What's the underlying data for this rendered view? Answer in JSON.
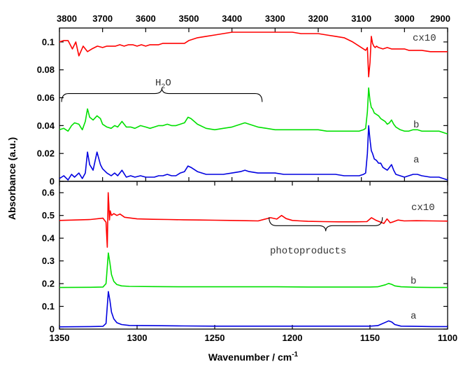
{
  "chart_data": [
    {
      "type": "line",
      "panel": "top",
      "xlabel": "",
      "ylabel": "Absorbance (a.u.)",
      "xlim": [
        3800,
        2900
      ],
      "ylim": [
        0,
        0.11
      ],
      "x_ticks": [
        3800,
        3700,
        3600,
        3500,
        3400,
        3300,
        3200,
        3100,
        3000,
        2900
      ],
      "y_ticks": [
        0,
        0.02,
        0.04,
        0.06,
        0.08,
        0.1
      ],
      "grid": false,
      "series": [
        {
          "name": "cx10",
          "color": "#ff0000",
          "x": [
            3800,
            3790,
            3780,
            3770,
            3762,
            3755,
            3745,
            3735,
            3725,
            3712,
            3700,
            3690,
            3680,
            3670,
            3660,
            3650,
            3640,
            3630,
            3620,
            3610,
            3600,
            3590,
            3580,
            3570,
            3560,
            3550,
            3540,
            3530,
            3520,
            3510,
            3500,
            3490,
            3480,
            3460,
            3440,
            3420,
            3400,
            3380,
            3360,
            3340,
            3320,
            3300,
            3280,
            3260,
            3240,
            3220,
            3200,
            3180,
            3160,
            3140,
            3120,
            3105,
            3095,
            3090,
            3086,
            3083,
            3080,
            3077,
            3074,
            3071,
            3068,
            3065,
            3060,
            3050,
            3040,
            3030,
            3020,
            3010,
            3000,
            2990,
            2980,
            2960,
            2940,
            2920,
            2900
          ],
          "y": [
            0.1,
            0.101,
            0.101,
            0.095,
            0.1,
            0.09,
            0.097,
            0.093,
            0.095,
            0.097,
            0.096,
            0.097,
            0.097,
            0.097,
            0.098,
            0.097,
            0.098,
            0.098,
            0.097,
            0.098,
            0.097,
            0.098,
            0.098,
            0.098,
            0.099,
            0.099,
            0.099,
            0.099,
            0.099,
            0.099,
            0.101,
            0.102,
            0.103,
            0.104,
            0.105,
            0.106,
            0.107,
            0.107,
            0.107,
            0.107,
            0.107,
            0.107,
            0.107,
            0.107,
            0.106,
            0.106,
            0.106,
            0.105,
            0.104,
            0.103,
            0.1,
            0.097,
            0.095,
            0.094,
            0.096,
            0.075,
            0.085,
            0.104,
            0.099,
            0.097,
            0.096,
            0.097,
            0.096,
            0.095,
            0.096,
            0.095,
            0.095,
            0.095,
            0.095,
            0.094,
            0.094,
            0.094,
            0.093,
            0.093,
            0.093
          ]
        },
        {
          "name": "b",
          "color": "#00e000",
          "x": [
            3800,
            3790,
            3780,
            3772,
            3765,
            3755,
            3747,
            3740,
            3735,
            3730,
            3722,
            3713,
            3705,
            3700,
            3690,
            3680,
            3672,
            3665,
            3655,
            3645,
            3635,
            3625,
            3612,
            3600,
            3590,
            3580,
            3570,
            3560,
            3550,
            3540,
            3530,
            3520,
            3510,
            3502,
            3495,
            3480,
            3460,
            3440,
            3420,
            3400,
            3380,
            3370,
            3360,
            3340,
            3320,
            3300,
            3280,
            3260,
            3240,
            3220,
            3200,
            3180,
            3160,
            3140,
            3120,
            3105,
            3095,
            3090,
            3086,
            3083,
            3080,
            3077,
            3074,
            3070,
            3065,
            3060,
            3055,
            3050,
            3045,
            3040,
            3035,
            3030,
            3025,
            3020,
            3010,
            3000,
            2990,
            2980,
            2970,
            2960,
            2940,
            2920,
            2900
          ],
          "y": [
            0.037,
            0.038,
            0.036,
            0.04,
            0.042,
            0.041,
            0.037,
            0.043,
            0.052,
            0.046,
            0.044,
            0.047,
            0.045,
            0.041,
            0.039,
            0.038,
            0.04,
            0.039,
            0.043,
            0.039,
            0.039,
            0.038,
            0.04,
            0.039,
            0.038,
            0.039,
            0.04,
            0.04,
            0.041,
            0.04,
            0.04,
            0.041,
            0.042,
            0.046,
            0.045,
            0.041,
            0.038,
            0.037,
            0.038,
            0.039,
            0.041,
            0.042,
            0.041,
            0.039,
            0.038,
            0.037,
            0.037,
            0.037,
            0.037,
            0.037,
            0.037,
            0.036,
            0.036,
            0.036,
            0.036,
            0.036,
            0.037,
            0.038,
            0.05,
            0.067,
            0.058,
            0.053,
            0.052,
            0.049,
            0.048,
            0.047,
            0.045,
            0.044,
            0.043,
            0.041,
            0.042,
            0.044,
            0.041,
            0.039,
            0.037,
            0.036,
            0.036,
            0.037,
            0.037,
            0.036,
            0.036,
            0.036,
            0.034
          ]
        },
        {
          "name": "a",
          "color": "#0000e0",
          "x": [
            3800,
            3790,
            3780,
            3772,
            3765,
            3755,
            3747,
            3740,
            3735,
            3730,
            3722,
            3713,
            3705,
            3700,
            3690,
            3680,
            3672,
            3665,
            3655,
            3645,
            3635,
            3625,
            3612,
            3600,
            3590,
            3580,
            3570,
            3560,
            3550,
            3540,
            3530,
            3520,
            3510,
            3502,
            3495,
            3480,
            3460,
            3440,
            3420,
            3400,
            3380,
            3370,
            3360,
            3340,
            3320,
            3300,
            3280,
            3260,
            3240,
            3220,
            3200,
            3180,
            3160,
            3140,
            3120,
            3105,
            3095,
            3090,
            3086,
            3083,
            3080,
            3077,
            3074,
            3070,
            3065,
            3060,
            3055,
            3050,
            3045,
            3040,
            3035,
            3030,
            3025,
            3020,
            3010,
            3000,
            2990,
            2980,
            2970,
            2960,
            2940,
            2920,
            2900
          ],
          "y": [
            0.002,
            0.004,
            0.001,
            0.005,
            0.003,
            0.006,
            0.002,
            0.006,
            0.021,
            0.012,
            0.008,
            0.021,
            0.012,
            0.009,
            0.006,
            0.004,
            0.006,
            0.004,
            0.008,
            0.003,
            0.004,
            0.003,
            0.004,
            0.003,
            0.003,
            0.003,
            0.004,
            0.004,
            0.005,
            0.004,
            0.004,
            0.006,
            0.007,
            0.011,
            0.01,
            0.007,
            0.005,
            0.005,
            0.005,
            0.006,
            0.007,
            0.008,
            0.007,
            0.006,
            0.006,
            0.006,
            0.005,
            0.005,
            0.005,
            0.005,
            0.005,
            0.005,
            0.005,
            0.004,
            0.004,
            0.004,
            0.005,
            0.006,
            0.02,
            0.04,
            0.03,
            0.022,
            0.02,
            0.016,
            0.015,
            0.013,
            0.013,
            0.01,
            0.009,
            0.008,
            0.01,
            0.012,
            0.008,
            0.005,
            0.004,
            0.003,
            0.004,
            0.005,
            0.005,
            0.004,
            0.003,
            0.003,
            0.001
          ]
        }
      ],
      "annotations": [
        {
          "text": "H2O",
          "label_main": "H",
          "label_sub": "2",
          "label_end": "O",
          "type": "brace",
          "x_from": 3795,
          "x_to": 3330,
          "y": 0.063
        },
        {
          "text": "cx10",
          "attached_to": "cx10"
        },
        {
          "text": "b",
          "attached_to": "b"
        },
        {
          "text": "a",
          "attached_to": "a"
        }
      ]
    },
    {
      "type": "line",
      "panel": "bottom",
      "xlabel": "Wavenumber / cm-1",
      "xlabel_main": "Wavenumber / cm",
      "xlabel_sup": "-1",
      "ylabel": "Absorbance (a.u.)",
      "xlim": [
        1350,
        1100
      ],
      "ylim": [
        0,
        0.65
      ],
      "x_ticks": [
        1350,
        1300,
        1250,
        1200,
        1150,
        1100
      ],
      "y_ticks": [
        0,
        0.1,
        0.2,
        0.3,
        0.4,
        0.5,
        0.6
      ],
      "grid": false,
      "series": [
        {
          "name": "cx10",
          "color": "#ff0000",
          "x": [
            1350,
            1340,
            1330,
            1322,
            1320,
            1319.2,
            1318.6,
            1318.2,
            1317.8,
            1317.3,
            1316.5,
            1315,
            1313,
            1311,
            1308,
            1300,
            1290,
            1280,
            1270,
            1260,
            1250,
            1240,
            1230,
            1222,
            1218,
            1214,
            1210,
            1207,
            1204,
            1200,
            1195,
            1190,
            1180,
            1170,
            1160,
            1152,
            1149,
            1146,
            1143,
            1141,
            1139,
            1137,
            1135,
            1132,
            1128,
            1120,
            1110,
            1100
          ],
          "y": [
            0.478,
            0.48,
            0.482,
            0.488,
            0.47,
            0.36,
            0.6,
            0.55,
            0.48,
            0.52,
            0.5,
            0.508,
            0.5,
            0.506,
            0.492,
            0.485,
            0.483,
            0.482,
            0.481,
            0.48,
            0.479,
            0.478,
            0.477,
            0.476,
            0.483,
            0.49,
            0.484,
            0.5,
            0.486,
            0.478,
            0.476,
            0.474,
            0.473,
            0.472,
            0.472,
            0.473,
            0.49,
            0.478,
            0.47,
            0.465,
            0.485,
            0.468,
            0.472,
            0.48,
            0.476,
            0.477,
            0.476,
            0.475
          ]
        },
        {
          "name": "b",
          "color": "#00e000",
          "x": [
            1350,
            1330,
            1322,
            1320,
            1318.5,
            1317.5,
            1316.5,
            1315,
            1313,
            1310,
            1305,
            1290,
            1270,
            1250,
            1230,
            1210,
            1190,
            1170,
            1150,
            1145,
            1140,
            1138,
            1136,
            1134,
            1130,
            1120,
            1110,
            1100
          ],
          "y": [
            0.183,
            0.184,
            0.185,
            0.2,
            0.335,
            0.29,
            0.24,
            0.21,
            0.196,
            0.19,
            0.188,
            0.187,
            0.186,
            0.186,
            0.186,
            0.186,
            0.185,
            0.185,
            0.185,
            0.186,
            0.195,
            0.201,
            0.197,
            0.19,
            0.186,
            0.184,
            0.183,
            0.183
          ]
        },
        {
          "name": "a",
          "color": "#0000e0",
          "x": [
            1350,
            1330,
            1322,
            1320,
            1318.5,
            1317.5,
            1316.5,
            1315,
            1313,
            1310,
            1305,
            1290,
            1270,
            1250,
            1230,
            1210,
            1190,
            1170,
            1150,
            1145,
            1140,
            1138,
            1136,
            1134,
            1130,
            1120,
            1110,
            1100
          ],
          "y": [
            0.01,
            0.011,
            0.012,
            0.025,
            0.165,
            0.125,
            0.075,
            0.045,
            0.028,
            0.02,
            0.016,
            0.015,
            0.014,
            0.013,
            0.013,
            0.013,
            0.013,
            0.013,
            0.013,
            0.015,
            0.03,
            0.036,
            0.031,
            0.02,
            0.013,
            0.012,
            0.011,
            0.011
          ]
        }
      ],
      "annotations": [
        {
          "text": "photoproducts",
          "type": "brace",
          "x_from": 1215,
          "x_to": 1142,
          "y": 0.455
        },
        {
          "text": "cx10",
          "attached_to": "cx10"
        },
        {
          "text": "b",
          "attached_to": "b"
        },
        {
          "text": "a",
          "attached_to": "a"
        }
      ]
    }
  ]
}
